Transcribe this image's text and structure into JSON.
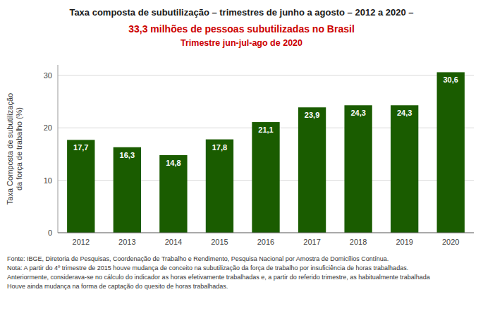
{
  "chart_data": {
    "type": "bar",
    "title": "Taxa composta de subutilização – trimestres de junho a agosto – 2012 a 2020 –",
    "subtitle": [
      "33,3 milhões de pessoas subutilizadas no Brasil",
      "Trimestre jun-jul-ago de 2020"
    ],
    "ylabel": "Taxa Composta de subutilização\nda força de trabalho (%)",
    "categories": [
      "2012",
      "2013",
      "2014",
      "2015",
      "2016",
      "2017",
      "2018",
      "2019",
      "2020"
    ],
    "values": [
      17.7,
      16.3,
      14.8,
      17.8,
      21.1,
      23.9,
      24.3,
      24.3,
      30.6
    ],
    "value_labels": [
      "17,7",
      "16,3",
      "14,8",
      "17,8",
      "21,1",
      "23,9",
      "24,3",
      "24,3",
      "30,6"
    ],
    "data_labels": true,
    "color": "#1a5c00",
    "ylim": [
      0,
      32
    ],
    "yticks": [
      0,
      10,
      20,
      30
    ],
    "grid": true,
    "annotations": [
      "Fonte: IBGE, Diretoria de Pesquisas, Coordenação de Trabalho e Rendimento, Pesquisa Nacional por Amostra de Domicílios Contínua.",
      "Nota: A partir do 4º trimestre de 2015 houve mudança de conceito na subutilização da força de trabalho por insuficiência de horas trabalhadas.",
      "Anteriormente, considerava-se no cálculo do indicador as horas efetivamente trabalhadas e, a partir do referido trimestre, as habitualmente trabalhada",
      "Houve ainda mudança na forma de captação do quesito de horas trabalhadas."
    ]
  }
}
